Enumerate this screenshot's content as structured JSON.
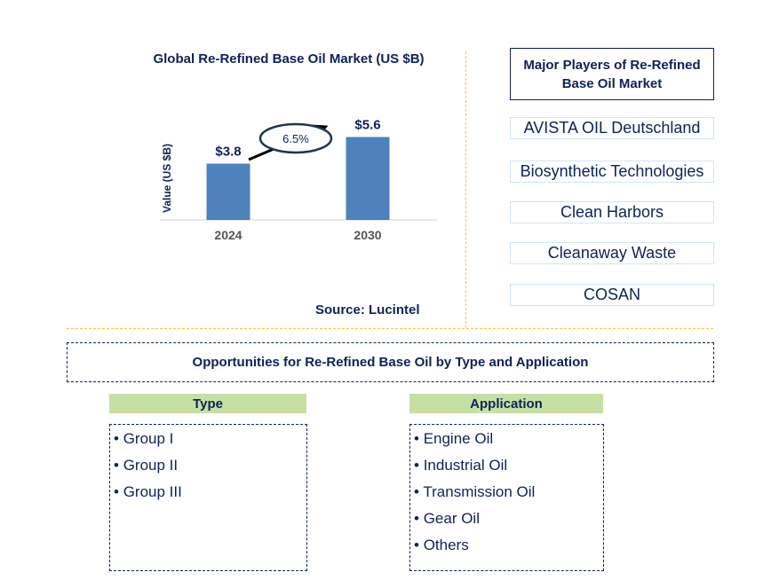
{
  "chart_data": {
    "type": "bar",
    "title": "Global Re-Refined Base Oil Market (US $B)",
    "ylabel": "Value (US $B)",
    "categories": [
      "2024",
      "2030"
    ],
    "values": [
      3.8,
      5.6
    ],
    "data_labels": [
      "$3.8",
      "$5.6"
    ],
    "cagr_label": "6.5%",
    "bar_color": "#4f81bd",
    "grid": false,
    "source": "Source: Lucintel"
  },
  "players": {
    "title": "Major Players of Re-Refined Base Oil Market",
    "items": [
      "AVISTA OIL Deutschland",
      "Biosynthetic Technologies",
      "Clean Harbors",
      "Cleanaway Waste",
      "COSAN"
    ]
  },
  "opportunities": {
    "title": "Opportunities for Re-Refined Base Oil by Type and Application",
    "type": {
      "header": "Type",
      "items": [
        "Group I",
        "Group II",
        "Group III"
      ]
    },
    "application": {
      "header": "Application",
      "items": [
        "Engine Oil",
        "Industrial Oil",
        "Transmission Oil",
        "Gear Oil",
        "Others"
      ]
    }
  }
}
